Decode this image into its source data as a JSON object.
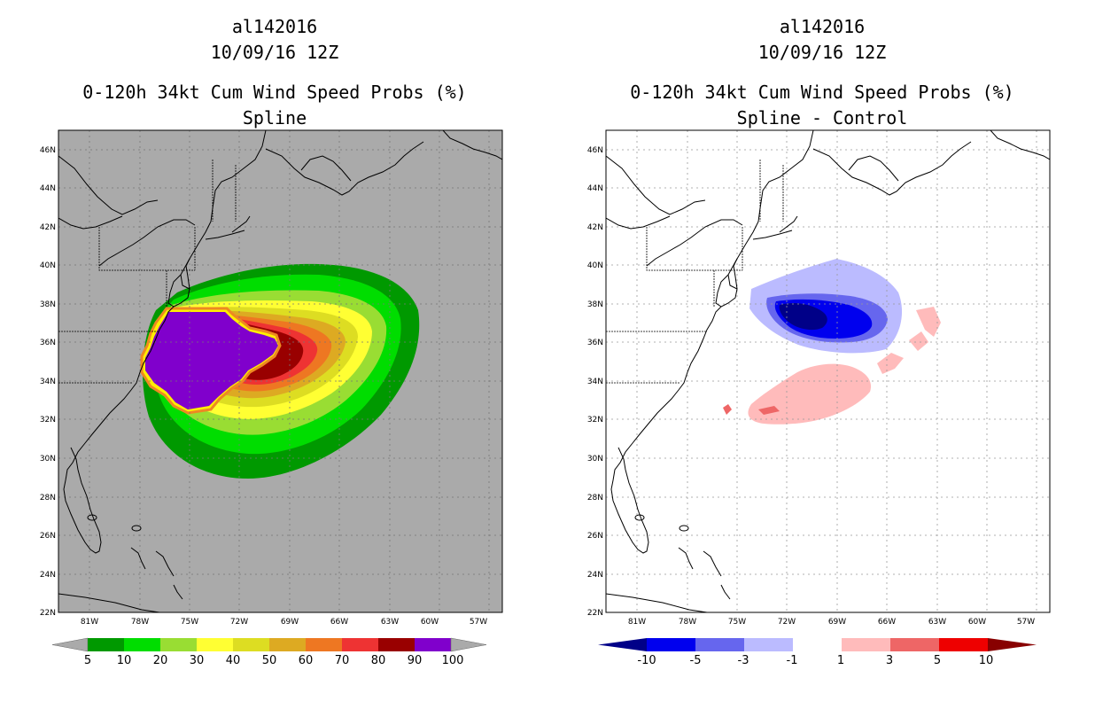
{
  "left_panel": {
    "title_lines": [
      "al142016",
      "10/09/16 12Z",
      "0-120h 34kt Cum Wind Speed Probs (%)",
      "Spline"
    ],
    "lat_labels": [
      "46N",
      "44N",
      "42N",
      "40N",
      "38N",
      "36N",
      "34N",
      "32N",
      "30N",
      "28N",
      "26N",
      "24N",
      "22N"
    ],
    "lon_labels": [
      "81W",
      "78W",
      "75W",
      "72W",
      "69W",
      "66W",
      "63W",
      "60W",
      "57W"
    ],
    "colorbar_labels": [
      "5",
      "10",
      "20",
      "30",
      "40",
      "50",
      "60",
      "70",
      "80",
      "90",
      "100"
    ],
    "colorbar_colors": [
      "#009900",
      "#00dd00",
      "#99dd33",
      "#ffff33",
      "#dddd22",
      "#ddaa22",
      "#ee7722",
      "#ee3333",
      "#990000",
      "#8000cc"
    ],
    "background_color": "#aaaaaa"
  },
  "right_panel": {
    "title_lines": [
      "al142016",
      "10/09/16 12Z",
      "0-120h 34kt Cum Wind Speed Probs (%)",
      "Spline - Control"
    ],
    "lat_labels": [
      "46N",
      "44N",
      "42N",
      "40N",
      "38N",
      "36N",
      "34N",
      "32N",
      "30N",
      "28N",
      "26N",
      "24N",
      "22N"
    ],
    "lon_labels": [
      "81W",
      "78W",
      "75W",
      "72W",
      "69W",
      "66W",
      "63W",
      "60W",
      "57W"
    ],
    "colorbar_labels": [
      "-10",
      "-5",
      "-3",
      "-1",
      "1",
      "3",
      "5",
      "10"
    ],
    "colorbar_colors": [
      "#000088",
      "#0000ee",
      "#6666ee",
      "#bbbbff",
      "#ffffff",
      "#ffbbbb",
      "#ee6666",
      "#ee0000",
      "#880000"
    ]
  }
}
